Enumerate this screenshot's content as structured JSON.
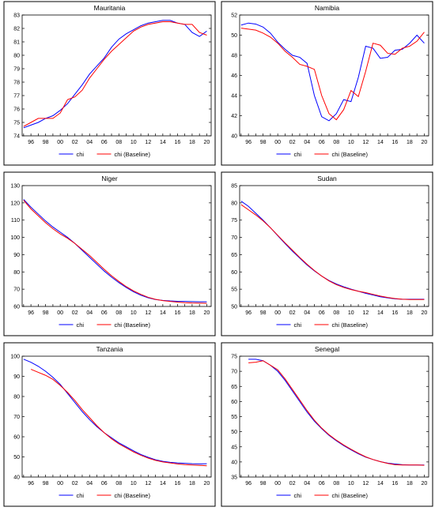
{
  "chart_data": [
    {
      "type": "line",
      "title": "Mauritania",
      "ylim": [
        74,
        83
      ],
      "yticks": [
        74,
        75,
        76,
        77,
        78,
        79,
        80,
        81,
        82,
        83
      ],
      "xticks": [
        "96",
        "98",
        "00",
        "02",
        "04",
        "06",
        "08",
        "10",
        "12",
        "14",
        "16",
        "18",
        "20"
      ],
      "series": [
        {
          "name": "chi",
          "color": "#0000ff",
          "x": [
            1995,
            1996,
            1997,
            1998,
            1999,
            2000,
            2001,
            2002,
            2003,
            2004,
            2005,
            2006,
            2007,
            2008,
            2009,
            2010,
            2011,
            2012,
            2013,
            2014,
            2015,
            2016,
            2017,
            2018,
            2019,
            2020
          ],
          "values": [
            74.6,
            74.8,
            75.0,
            75.3,
            75.5,
            75.9,
            76.4,
            77.1,
            77.8,
            78.6,
            79.2,
            79.8,
            80.6,
            81.2,
            81.6,
            81.9,
            82.2,
            82.4,
            82.5,
            82.6,
            82.6,
            82.4,
            82.3,
            81.7,
            81.4,
            81.8
          ]
        },
        {
          "name": "chi (Baseline)",
          "color": "#ff0000",
          "x": [
            1995,
            1996,
            1997,
            1998,
            1999,
            2000,
            2001,
            2002,
            2003,
            2004,
            2005,
            2006,
            2007,
            2008,
            2009,
            2010,
            2011,
            2012,
            2013,
            2014,
            2015,
            2016,
            2017,
            2018,
            2019,
            2020
          ],
          "values": [
            74.7,
            75.0,
            75.3,
            75.3,
            75.3,
            75.7,
            76.7,
            76.9,
            77.4,
            78.3,
            79.0,
            79.7,
            80.3,
            80.8,
            81.3,
            81.8,
            82.1,
            82.3,
            82.4,
            82.5,
            82.5,
            82.4,
            82.3,
            82.3,
            81.7,
            81.5
          ]
        }
      ]
    },
    {
      "type": "line",
      "title": "Namibia",
      "ylim": [
        40,
        52
      ],
      "yticks": [
        40,
        42,
        44,
        46,
        48,
        50,
        52
      ],
      "xticks": [
        "96",
        "98",
        "00",
        "02",
        "04",
        "06",
        "08",
        "10",
        "12",
        "14",
        "16",
        "18",
        "20"
      ],
      "series": [
        {
          "name": "chi",
          "color": "#0000ff",
          "x": [
            1995,
            1996,
            1997,
            1998,
            1999,
            2000,
            2001,
            2002,
            2003,
            2004,
            2005,
            2006,
            2007,
            2008,
            2009,
            2010,
            2011,
            2012,
            2013,
            2014,
            2015,
            2016,
            2017,
            2018,
            2019,
            2020
          ],
          "values": [
            51.0,
            51.2,
            51.1,
            50.8,
            50.2,
            49.3,
            48.6,
            48.0,
            47.8,
            47.2,
            44.0,
            41.9,
            41.5,
            42.2,
            43.6,
            43.4,
            45.8,
            48.9,
            48.7,
            47.7,
            47.8,
            48.5,
            48.6,
            49.2,
            50.0,
            49.2
          ]
        },
        {
          "name": "chi (Baseline)",
          "color": "#ff0000",
          "x": [
            1995,
            1996,
            1997,
            1998,
            1999,
            2000,
            2001,
            2002,
            2003,
            2004,
            2005,
            2006,
            2007,
            2008,
            2009,
            2010,
            2011,
            2012,
            2013,
            2014,
            2015,
            2016,
            2017,
            2018,
            2019,
            2020
          ],
          "values": [
            50.7,
            50.6,
            50.5,
            50.2,
            49.8,
            49.2,
            48.4,
            47.8,
            47.1,
            46.9,
            46.6,
            44.0,
            42.2,
            41.6,
            42.6,
            44.5,
            43.9,
            46.4,
            49.2,
            49.0,
            48.2,
            48.1,
            48.7,
            48.9,
            49.4,
            50.3
          ]
        }
      ]
    },
    {
      "type": "line",
      "title": "Niger",
      "ylim": [
        60,
        130
      ],
      "yticks": [
        60,
        70,
        80,
        90,
        100,
        110,
        120,
        130
      ],
      "xticks": [
        "96",
        "98",
        "00",
        "02",
        "04",
        "06",
        "08",
        "10",
        "12",
        "14",
        "16",
        "18",
        "20"
      ],
      "series": [
        {
          "name": "chi",
          "color": "#0000ff",
          "x": [
            1995,
            1996,
            1997,
            1998,
            1999,
            2000,
            2001,
            2002,
            2003,
            2004,
            2005,
            2006,
            2007,
            2008,
            2009,
            2010,
            2011,
            2012,
            2013,
            2014,
            2015,
            2016,
            2017,
            2018,
            2019,
            2020
          ],
          "values": [
            122.0,
            117.5,
            113.5,
            109.5,
            106.0,
            103.0,
            100.0,
            96.5,
            92.5,
            88.5,
            84.5,
            80.5,
            77.0,
            73.8,
            71.0,
            68.5,
            66.5,
            65.0,
            64.0,
            63.5,
            63.2,
            63.0,
            62.9,
            62.8,
            62.7,
            62.7
          ]
        },
        {
          "name": "chi (Baseline)",
          "color": "#ff0000",
          "x": [
            1995,
            1996,
            1997,
            1998,
            1999,
            2000,
            2001,
            2002,
            2003,
            2004,
            2005,
            2006,
            2007,
            2008,
            2009,
            2010,
            2011,
            2012,
            2013,
            2014,
            2015,
            2016,
            2017,
            2018,
            2019,
            2020
          ],
          "values": [
            121.5,
            116.5,
            112.5,
            108.5,
            105.0,
            102.0,
            99.5,
            96.5,
            93.0,
            89.5,
            85.5,
            81.5,
            77.8,
            74.5,
            71.5,
            69.0,
            67.0,
            65.3,
            64.1,
            63.4,
            62.9,
            62.5,
            62.2,
            62.0,
            61.9,
            61.8
          ]
        }
      ]
    },
    {
      "type": "line",
      "title": "Sudan",
      "ylim": [
        50,
        85
      ],
      "yticks": [
        50,
        55,
        60,
        65,
        70,
        75,
        80,
        85
      ],
      "xticks": [
        "96",
        "98",
        "00",
        "02",
        "04",
        "06",
        "08",
        "10",
        "12",
        "14",
        "16",
        "18",
        "20"
      ],
      "series": [
        {
          "name": "chi",
          "color": "#0000ff",
          "x": [
            1995,
            1996,
            1997,
            1998,
            1999,
            2000,
            2001,
            2002,
            2003,
            2004,
            2005,
            2006,
            2007,
            2008,
            2009,
            2010,
            2011,
            2012,
            2013,
            2014,
            2015,
            2016,
            2017,
            2018,
            2019,
            2020
          ],
          "values": [
            80.5,
            79.0,
            77.0,
            75.0,
            72.8,
            70.5,
            68.2,
            66.0,
            64.0,
            62.0,
            60.3,
            58.8,
            57.5,
            56.5,
            55.7,
            55.0,
            54.4,
            53.8,
            53.3,
            52.8,
            52.5,
            52.2,
            52.1,
            52.1,
            52.1,
            52.1
          ]
        },
        {
          "name": "chi (Baseline)",
          "color": "#ff0000",
          "x": [
            1995,
            1996,
            1997,
            1998,
            1999,
            2000,
            2001,
            2002,
            2003,
            2004,
            2005,
            2006,
            2007,
            2008,
            2009,
            2010,
            2011,
            2012,
            2013,
            2014,
            2015,
            2016,
            2017,
            2018,
            2019,
            2020
          ],
          "values": [
            79.5,
            78.0,
            76.5,
            74.8,
            72.8,
            70.6,
            68.4,
            66.3,
            64.2,
            62.2,
            60.4,
            58.8,
            57.4,
            56.3,
            55.5,
            54.9,
            54.4,
            54.0,
            53.5,
            53.0,
            52.6,
            52.3,
            52.1,
            52.0,
            52.0,
            52.0
          ]
        }
      ]
    },
    {
      "type": "line",
      "title": "Tanzania",
      "ylim": [
        40,
        100
      ],
      "yticks": [
        40,
        50,
        60,
        70,
        80,
        90,
        100
      ],
      "xticks": [
        "96",
        "98",
        "00",
        "02",
        "04",
        "06",
        "08",
        "10",
        "12",
        "14",
        "16",
        "18",
        "20"
      ],
      "series": [
        {
          "name": "chi",
          "color": "#0000ff",
          "x": [
            1995,
            1996,
            1997,
            1998,
            1999,
            2000,
            2001,
            2002,
            2003,
            2004,
            2005,
            2006,
            2007,
            2008,
            2009,
            2010,
            2011,
            2012,
            2013,
            2014,
            2015,
            2016,
            2017,
            2018,
            2019,
            2020
          ],
          "values": [
            98.5,
            97.0,
            95.0,
            92.5,
            89.5,
            86.0,
            81.5,
            77.0,
            72.5,
            68.5,
            65.0,
            62.0,
            59.5,
            57.0,
            55.0,
            53.0,
            51.2,
            49.8,
            48.6,
            47.8,
            47.3,
            47.0,
            46.8,
            46.6,
            46.5,
            46.6
          ]
        },
        {
          "name": "chi (Baseline)",
          "color": "#ff0000",
          "x": [
            1995,
            1996,
            1997,
            1998,
            1999,
            2000,
            2001,
            2002,
            2003,
            2004,
            2005,
            2006,
            2007,
            2008,
            2009,
            2010,
            2011,
            2012,
            2013,
            2014,
            2015,
            2016,
            2017,
            2018,
            2019,
            2020
          ],
          "values": [
            null,
            93.5,
            92.0,
            90.5,
            88.5,
            85.5,
            82.0,
            78.0,
            73.5,
            69.5,
            65.5,
            62.0,
            59.0,
            56.5,
            54.5,
            52.5,
            50.8,
            49.4,
            48.3,
            47.5,
            47.0,
            46.5,
            46.2,
            46.0,
            45.8,
            45.6
          ]
        }
      ]
    },
    {
      "type": "line",
      "title": "Senegal",
      "ylim": [
        35,
        75
      ],
      "yticks": [
        35,
        40,
        45,
        50,
        55,
        60,
        65,
        70,
        75
      ],
      "xticks": [
        "96",
        "98",
        "00",
        "02",
        "04",
        "06",
        "08",
        "10",
        "12",
        "14",
        "16",
        "18",
        "20"
      ],
      "series": [
        {
          "name": "chi",
          "color": "#0000ff",
          "x": [
            1995,
            1996,
            1997,
            1998,
            1999,
            2000,
            2001,
            2002,
            2003,
            2004,
            2005,
            2006,
            2007,
            2008,
            2009,
            2010,
            2011,
            2012,
            2013,
            2014,
            2015,
            2016,
            2017,
            2018,
            2019,
            2020
          ],
          "values": [
            null,
            74.0,
            74.0,
            73.5,
            72.0,
            70.0,
            67.0,
            63.5,
            60.0,
            56.5,
            53.5,
            51.0,
            48.8,
            47.0,
            45.4,
            44.0,
            42.7,
            41.6,
            40.8,
            40.1,
            39.6,
            39.3,
            39.1,
            39.0,
            39.0,
            39.0
          ]
        },
        {
          "name": "chi (Baseline)",
          "color": "#ff0000",
          "x": [
            1995,
            1996,
            1997,
            1998,
            1999,
            2000,
            2001,
            2002,
            2003,
            2004,
            2005,
            2006,
            2007,
            2008,
            2009,
            2010,
            2011,
            2012,
            2013,
            2014,
            2015,
            2016,
            2017,
            2018,
            2019,
            2020
          ],
          "values": [
            null,
            72.8,
            73.0,
            73.5,
            72.0,
            70.5,
            67.5,
            64.0,
            60.5,
            57.0,
            53.8,
            51.2,
            49.0,
            47.2,
            45.6,
            44.2,
            42.9,
            41.7,
            40.8,
            40.1,
            39.5,
            39.1,
            39.0,
            39.0,
            39.0,
            38.9
          ]
        }
      ]
    }
  ]
}
